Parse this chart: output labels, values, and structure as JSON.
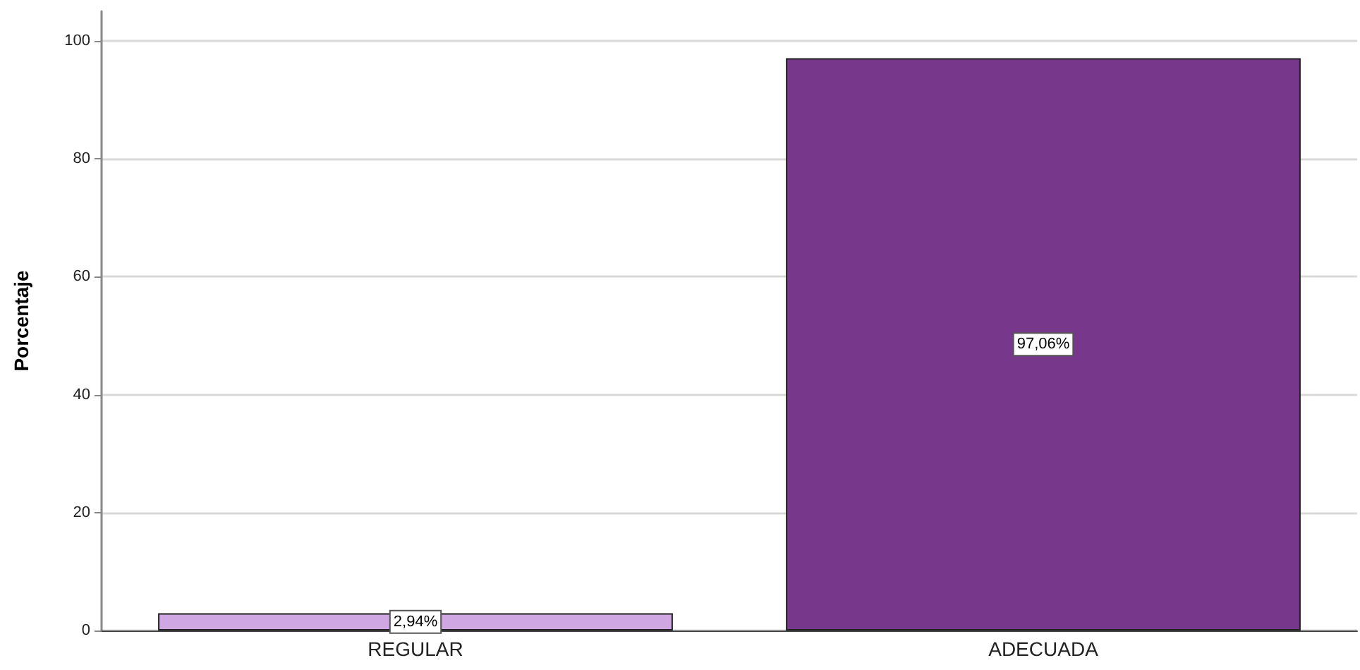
{
  "chart_data": {
    "type": "bar",
    "ylabel": "Porcentaje",
    "categories": [
      "REGULAR",
      "ADECUADA"
    ],
    "values": [
      2.94,
      97.06
    ],
    "colors": [
      "#cfa8e3",
      "#77378b"
    ],
    "value_labels": [
      "2,94%",
      "97,06%"
    ],
    "ylim": [
      0,
      105
    ],
    "yticks": [
      0,
      20,
      40,
      60,
      80,
      100
    ],
    "grid": "y"
  }
}
